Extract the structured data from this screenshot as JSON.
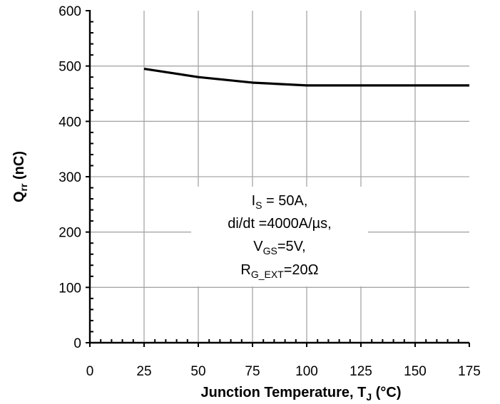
{
  "chart_data": {
    "type": "line",
    "xlabel": {
      "main": "Junction Temperature, T",
      "sub": "J",
      "unit": " (°C)"
    },
    "ylabel": {
      "main": "Q",
      "sub": "rr",
      "unit": " (nC)"
    },
    "xlim": [
      0,
      175
    ],
    "ylim": [
      0,
      600
    ],
    "xticks": [
      0,
      25,
      50,
      75,
      100,
      125,
      150,
      175
    ],
    "yticks": [
      0,
      100,
      200,
      300,
      400,
      500,
      600
    ],
    "x_minor_step": 5,
    "y_minor_step": 20,
    "grid": true,
    "series": [
      {
        "x": [
          25,
          50,
          75,
          100,
          125,
          150,
          175
        ],
        "y": [
          495,
          480,
          470,
          465,
          465,
          465,
          465
        ],
        "color": "#000000"
      }
    ],
    "annotation": [
      {
        "parts": [
          {
            "t": "I"
          },
          {
            "t": "S",
            "sub": true
          },
          {
            "t": " = 50A,"
          }
        ]
      },
      {
        "parts": [
          {
            "t": "di/dt =4000A/µs,"
          }
        ]
      },
      {
        "parts": [
          {
            "t": "V"
          },
          {
            "t": "GS",
            "sub": true
          },
          {
            "t": "=5V,"
          }
        ]
      },
      {
        "parts": [
          {
            "t": "R"
          },
          {
            "t": "G_EXT",
            "sub": true
          },
          {
            "t": "=20Ω"
          }
        ]
      }
    ]
  }
}
